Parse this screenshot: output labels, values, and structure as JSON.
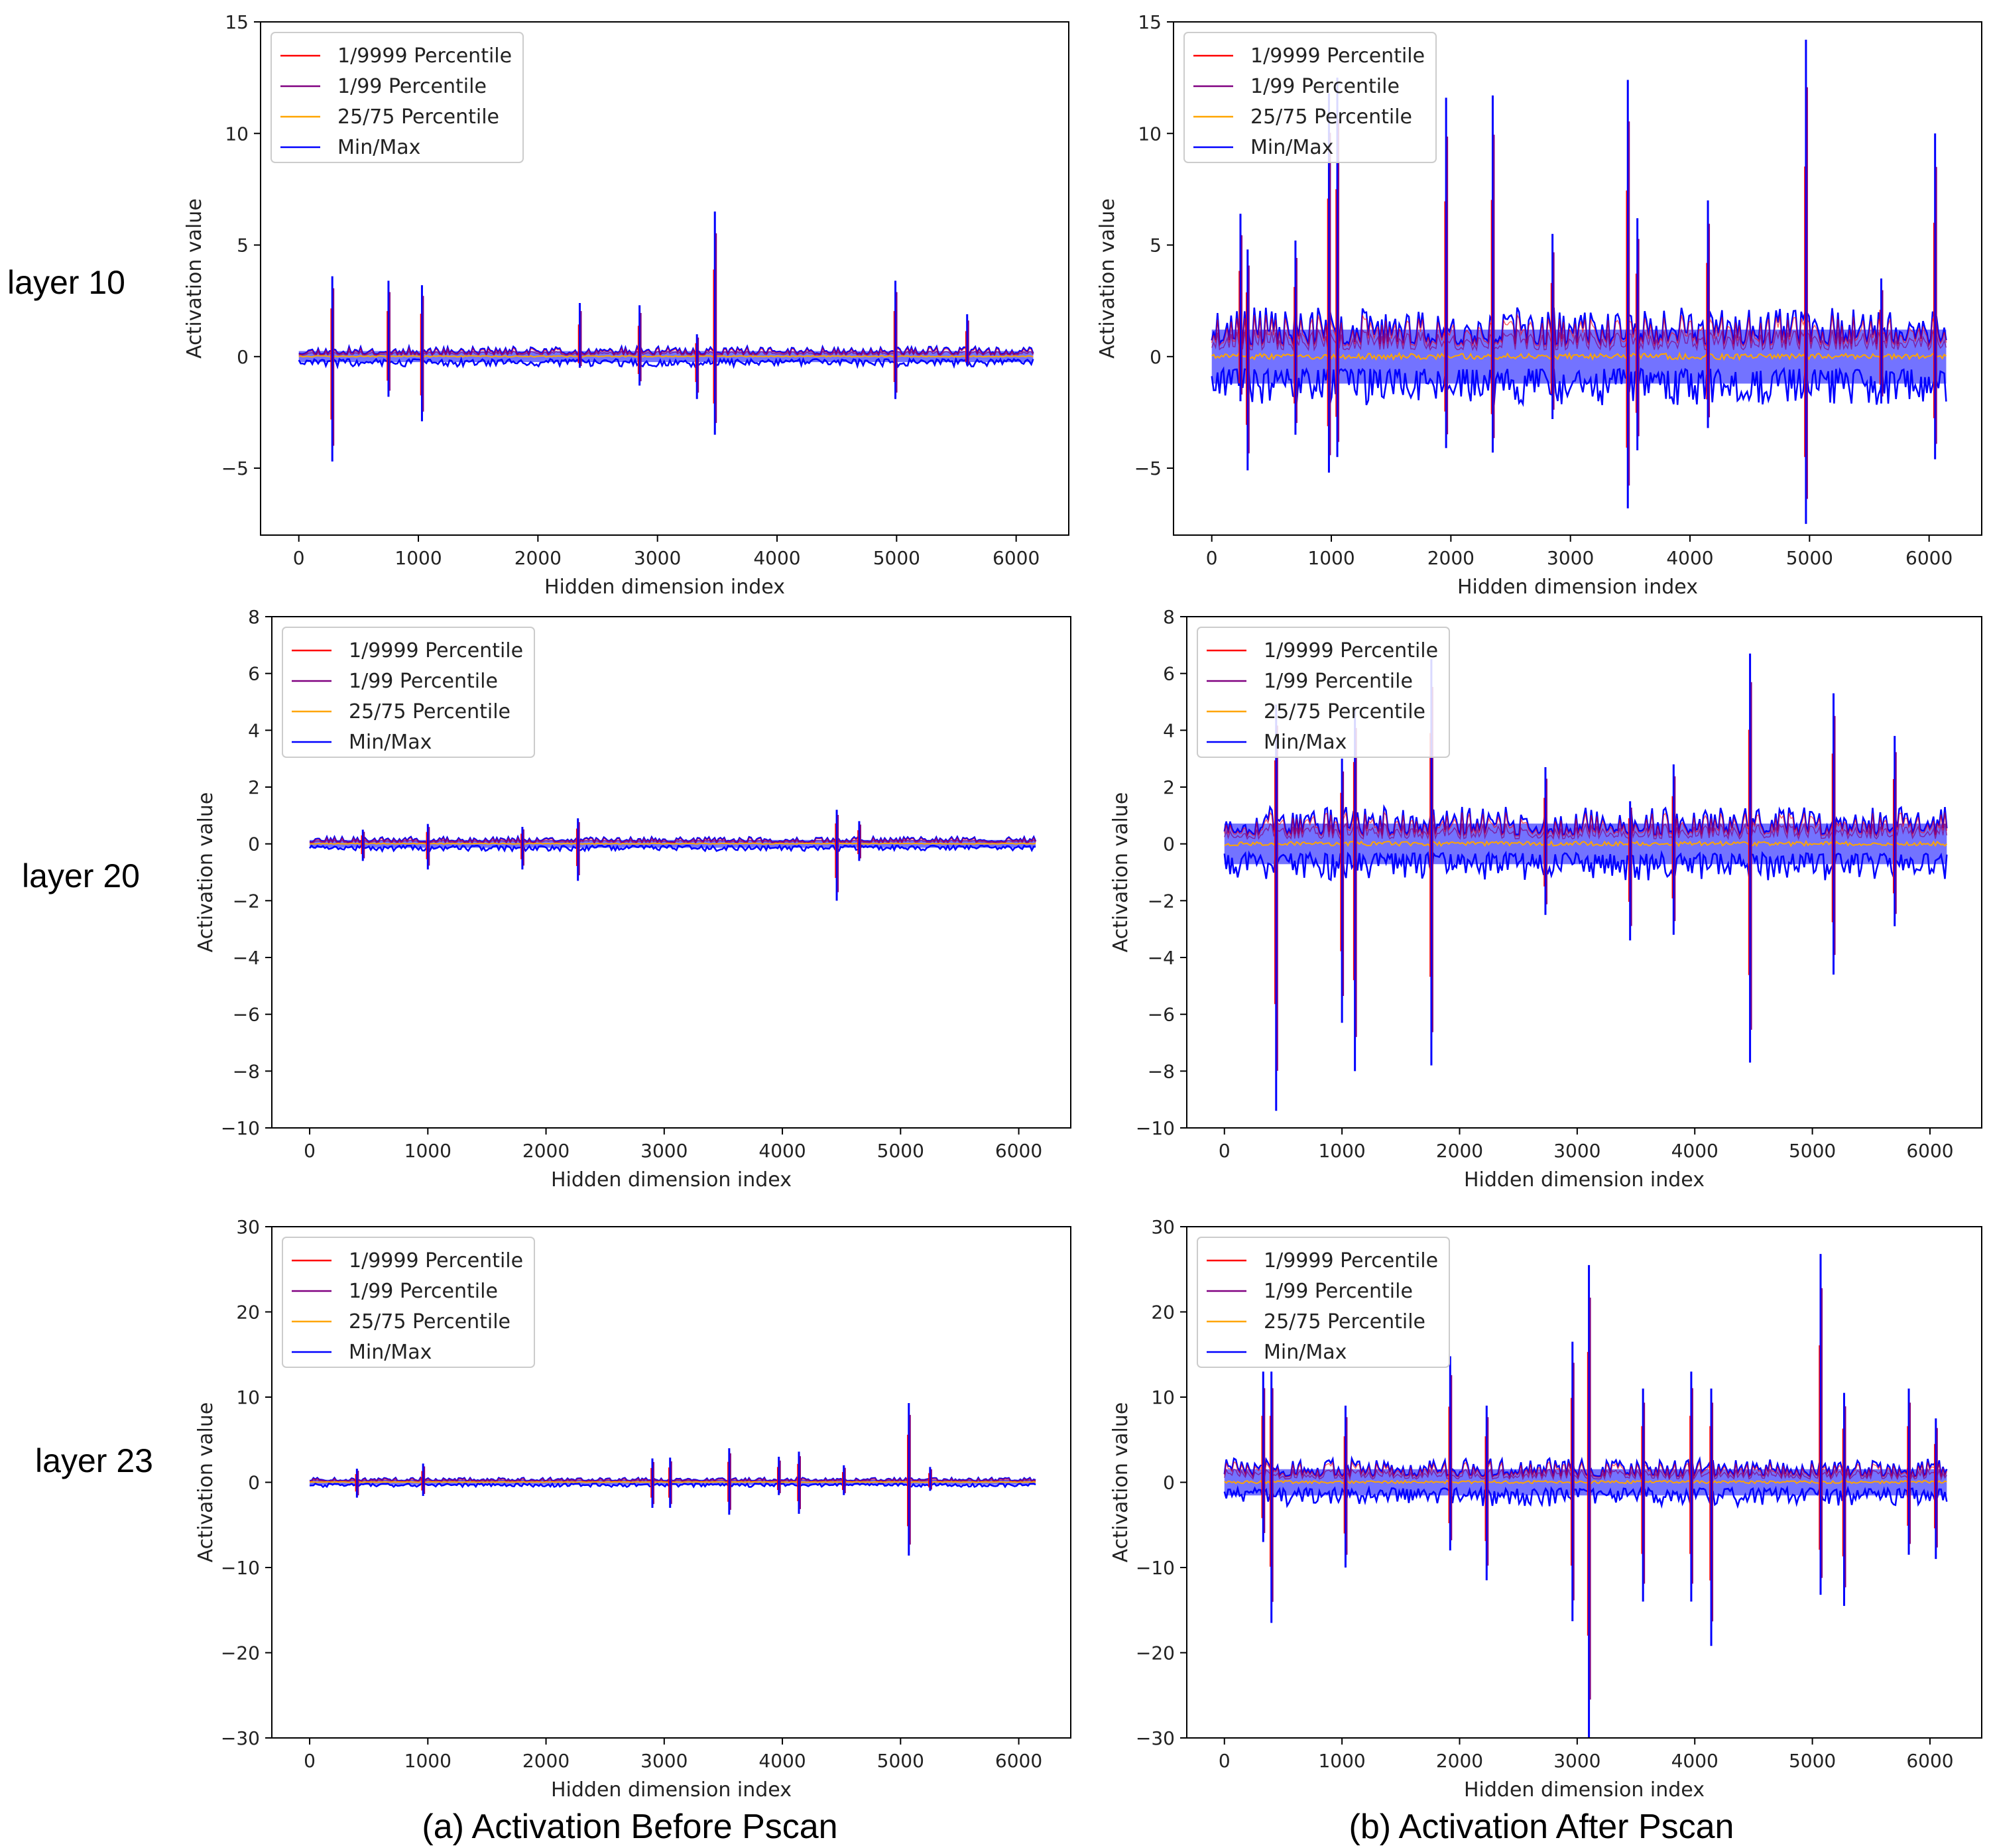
{
  "figure": {
    "row_labels": [
      "layer 10",
      "layer 20",
      "layer 23"
    ],
    "captions": [
      "(a) Activation Before Pscan",
      "(b) Activation After Pscan"
    ]
  },
  "legend_entries": [
    {
      "label": "1/9999 Percentile",
      "color": "#ff0000"
    },
    {
      "label": "1/99 Percentile",
      "color": "#800080"
    },
    {
      "label": "25/75 Percentile",
      "color": "#ffa500"
    },
    {
      "label": "Min/Max",
      "color": "#0000ff"
    }
  ],
  "chart_data": [
    {
      "type": "line",
      "row": "layer 10",
      "panel": "(a) Activation Before Pscan",
      "xlabel": "Hidden dimension index",
      "ylabel": "Activation value",
      "xlim": [
        -320,
        6440
      ],
      "ylim": [
        -8,
        15
      ],
      "xticks": [
        0,
        1000,
        2000,
        3000,
        4000,
        5000,
        6000
      ],
      "yticks": [
        -5,
        0,
        5,
        10,
        15
      ],
      "noise": {
        "band": 0.45,
        "seed": 11
      },
      "legend": [
        "1/9999 Percentile",
        "1/99 Percentile",
        "25/75 Percentile",
        "Min/Max"
      ],
      "spikes": [
        [
          280,
          3.6,
          -4.7
        ],
        [
          750,
          3.4,
          -1.8
        ],
        [
          1030,
          3.2,
          -2.9
        ],
        [
          2350,
          2.4,
          -0.5
        ],
        [
          2850,
          2.3,
          -1.3
        ],
        [
          3330,
          1.0,
          -1.9
        ],
        [
          3480,
          6.5,
          -3.5
        ],
        [
          4990,
          3.4,
          -1.9
        ],
        [
          5590,
          1.9,
          -0.4
        ]
      ]
    },
    {
      "type": "line",
      "row": "layer 10",
      "panel": "(b) Activation After Pscan",
      "xlabel": "Hidden dimension index",
      "ylabel": "Activation value",
      "xlim": [
        -320,
        6440
      ],
      "ylim": [
        -8,
        15
      ],
      "xticks": [
        0,
        1000,
        2000,
        3000,
        4000,
        5000,
        6000
      ],
      "yticks": [
        -5,
        0,
        5,
        10,
        15
      ],
      "noise": {
        "band": 2.2,
        "seed": 23
      },
      "legend": [
        "1/9999 Percentile",
        "1/99 Percentile",
        "25/75 Percentile",
        "Min/Max"
      ],
      "spikes": [
        [
          240,
          6.4,
          -2.0
        ],
        [
          300,
          4.8,
          -5.1
        ],
        [
          700,
          5.2,
          -3.5
        ],
        [
          980,
          11.8,
          -5.2
        ],
        [
          1050,
          12.5,
          -4.5
        ],
        [
          1960,
          11.6,
          -4.1
        ],
        [
          2350,
          11.7,
          -4.3
        ],
        [
          2850,
          5.5,
          -2.8
        ],
        [
          3480,
          12.4,
          -6.8
        ],
        [
          3560,
          6.2,
          -4.2
        ],
        [
          4150,
          7.0,
          -3.2
        ],
        [
          4970,
          14.2,
          -7.5
        ],
        [
          5600,
          3.5,
          -2.1
        ],
        [
          6050,
          10.0,
          -4.6
        ]
      ]
    },
    {
      "type": "line",
      "row": "layer 20",
      "panel": "(a) Activation Before Pscan",
      "xlabel": "Hidden dimension index",
      "ylabel": "Activation value",
      "xlim": [
        -320,
        6440
      ],
      "ylim": [
        -10,
        8
      ],
      "xticks": [
        0,
        1000,
        2000,
        3000,
        4000,
        5000,
        6000
      ],
      "yticks": [
        -10,
        -8,
        -6,
        -4,
        -2,
        0,
        2,
        4,
        6,
        8
      ],
      "noise": {
        "band": 0.25,
        "seed": 37
      },
      "legend": [
        "1/9999 Percentile",
        "1/99 Percentile",
        "25/75 Percentile",
        "Min/Max"
      ],
      "spikes": [
        [
          450,
          0.5,
          -0.6
        ],
        [
          1000,
          0.7,
          -0.9
        ],
        [
          1800,
          0.6,
          -0.9
        ],
        [
          2270,
          0.9,
          -1.3
        ],
        [
          4460,
          1.2,
          -2.0
        ],
        [
          4650,
          0.8,
          -0.6
        ]
      ]
    },
    {
      "type": "line",
      "row": "layer 20",
      "panel": "(b) Activation After Pscan",
      "xlabel": "Hidden dimension index",
      "ylabel": "Activation value",
      "xlim": [
        -320,
        6440
      ],
      "ylim": [
        -10,
        8
      ],
      "xticks": [
        0,
        1000,
        2000,
        3000,
        4000,
        5000,
        6000
      ],
      "yticks": [
        -10,
        -8,
        -6,
        -4,
        -2,
        0,
        2,
        4,
        6,
        8
      ],
      "noise": {
        "band": 1.3,
        "seed": 53
      },
      "legend": [
        "1/9999 Percentile",
        "1/99 Percentile",
        "25/75 Percentile",
        "Min/Max"
      ],
      "spikes": [
        [
          440,
          4.9,
          -9.4
        ],
        [
          1000,
          3.0,
          -6.3
        ],
        [
          1110,
          4.8,
          -8.0
        ],
        [
          1760,
          6.5,
          -7.8
        ],
        [
          2730,
          2.7,
          -2.5
        ],
        [
          3450,
          1.5,
          -3.4
        ],
        [
          3820,
          2.8,
          -3.2
        ],
        [
          4470,
          6.7,
          -7.7
        ],
        [
          5180,
          5.3,
          -4.6
        ],
        [
          5700,
          3.8,
          -2.9
        ]
      ]
    },
    {
      "type": "line",
      "row": "layer 23",
      "panel": "(a) Activation Before Pscan",
      "xlabel": "Hidden dimension index",
      "ylabel": "Activation value",
      "xlim": [
        -320,
        6440
      ],
      "ylim": [
        -30,
        30
      ],
      "xticks": [
        0,
        1000,
        2000,
        3000,
        4000,
        5000,
        6000
      ],
      "yticks": [
        -30,
        -20,
        -10,
        0,
        10,
        20,
        30
      ],
      "noise": {
        "band": 0.55,
        "seed": 71
      },
      "legend": [
        "1/9999 Percentile",
        "1/99 Percentile",
        "25/75 Percentile",
        "Min/Max"
      ],
      "spikes": [
        [
          400,
          1.6,
          -1.8
        ],
        [
          960,
          2.2,
          -1.6
        ],
        [
          2900,
          2.8,
          -3.0
        ],
        [
          3050,
          2.9,
          -3.0
        ],
        [
          3550,
          4.0,
          -3.8
        ],
        [
          3970,
          3.0,
          -1.5
        ],
        [
          4140,
          3.6,
          -3.7
        ],
        [
          4520,
          2.0,
          -1.5
        ],
        [
          5070,
          9.3,
          -8.6
        ],
        [
          5250,
          1.8,
          -1.0
        ]
      ]
    },
    {
      "type": "line",
      "row": "layer 23",
      "panel": "(b) Activation After Pscan",
      "xlabel": "Hidden dimension index",
      "ylabel": "Activation value",
      "xlim": [
        -320,
        6440
      ],
      "ylim": [
        -30,
        30
      ],
      "xticks": [
        0,
        1000,
        2000,
        3000,
        4000,
        5000,
        6000
      ],
      "yticks": [
        -30,
        -20,
        -10,
        0,
        10,
        20,
        30
      ],
      "noise": {
        "band": 2.8,
        "seed": 89
      },
      "legend": [
        "1/9999 Percentile",
        "1/99 Percentile",
        "25/75 Percentile",
        "Min/Max"
      ],
      "spikes": [
        [
          330,
          13.0,
          -7.0
        ],
        [
          400,
          13.0,
          -16.5
        ],
        [
          1030,
          9.0,
          -10.0
        ],
        [
          1920,
          14.8,
          -8.0
        ],
        [
          2230,
          9.0,
          -11.5
        ],
        [
          2960,
          16.5,
          -16.3
        ],
        [
          3100,
          25.5,
          -30.0
        ],
        [
          3560,
          11.0,
          -14.0
        ],
        [
          3970,
          13.0,
          -14.0
        ],
        [
          4140,
          11.0,
          -19.2
        ],
        [
          5070,
          26.8,
          -13.2
        ],
        [
          5270,
          10.5,
          -14.5
        ],
        [
          5820,
          11.0,
          -8.5
        ],
        [
          6050,
          7.5,
          -9.0
        ]
      ]
    }
  ]
}
